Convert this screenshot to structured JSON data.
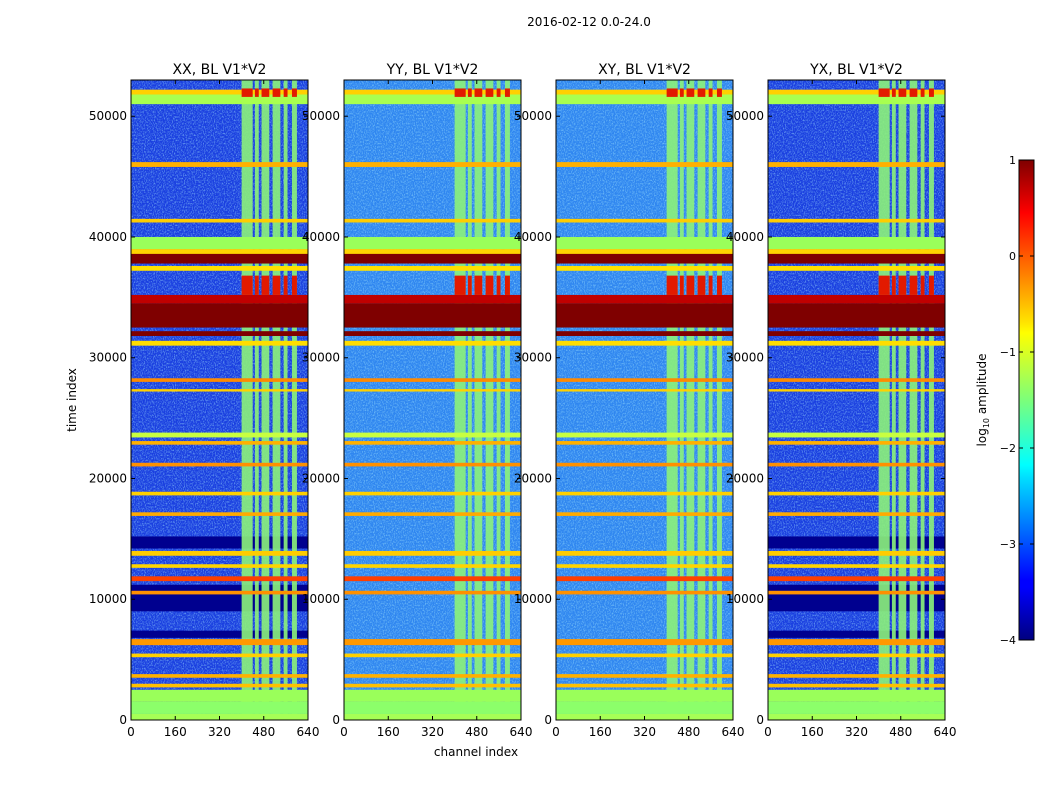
{
  "figure_title": "2016-02-12 0.0-24.0",
  "chart_data": [
    {
      "type": "heatmap",
      "title": "XX, BL V1*V2",
      "xlabel": "channel index",
      "ylabel": "time index",
      "xlim": [
        0,
        640
      ],
      "ylim": [
        0,
        53000
      ],
      "xticks": [
        0,
        160,
        320,
        480,
        640
      ],
      "yticks": [
        0,
        10000,
        20000,
        30000,
        40000,
        50000
      ]
    },
    {
      "type": "heatmap",
      "title": "YY, BL V1*V2",
      "xlabel": "channel index",
      "ylabel": "",
      "xlim": [
        0,
        640
      ],
      "ylim": [
        0,
        53000
      ],
      "xticks": [
        0,
        160,
        320,
        480,
        640
      ],
      "yticks": [
        0,
        10000,
        20000,
        30000,
        40000,
        50000
      ]
    },
    {
      "type": "heatmap",
      "title": "XY, BL V1*V2",
      "xlabel": "channel index",
      "ylabel": "",
      "xlim": [
        0,
        640
      ],
      "ylim": [
        0,
        53000
      ],
      "xticks": [
        0,
        160,
        320,
        480,
        640
      ],
      "yticks": [
        0,
        10000,
        20000,
        30000,
        40000,
        50000
      ]
    },
    {
      "type": "heatmap",
      "title": "YX, BL V1*V2",
      "xlabel": "channel index",
      "ylabel": "",
      "xlim": [
        0,
        640
      ],
      "ylim": [
        0,
        53000
      ],
      "xticks": [
        0,
        160,
        320,
        480,
        640
      ],
      "yticks": [
        0,
        10000,
        20000,
        30000,
        40000,
        50000
      ]
    }
  ],
  "colorbar": {
    "label_prefix": "log",
    "label_sub": "10",
    "label_suffix": " amplitude",
    "range": [
      -4,
      1
    ],
    "ticks": [
      1,
      0,
      -1,
      -2,
      -3,
      -4
    ],
    "tick_labels": [
      "1",
      "0",
      "−1",
      "−2",
      "−3",
      "−4"
    ]
  },
  "shared_xlabel": "channel index",
  "shared_ylabel": "time index"
}
